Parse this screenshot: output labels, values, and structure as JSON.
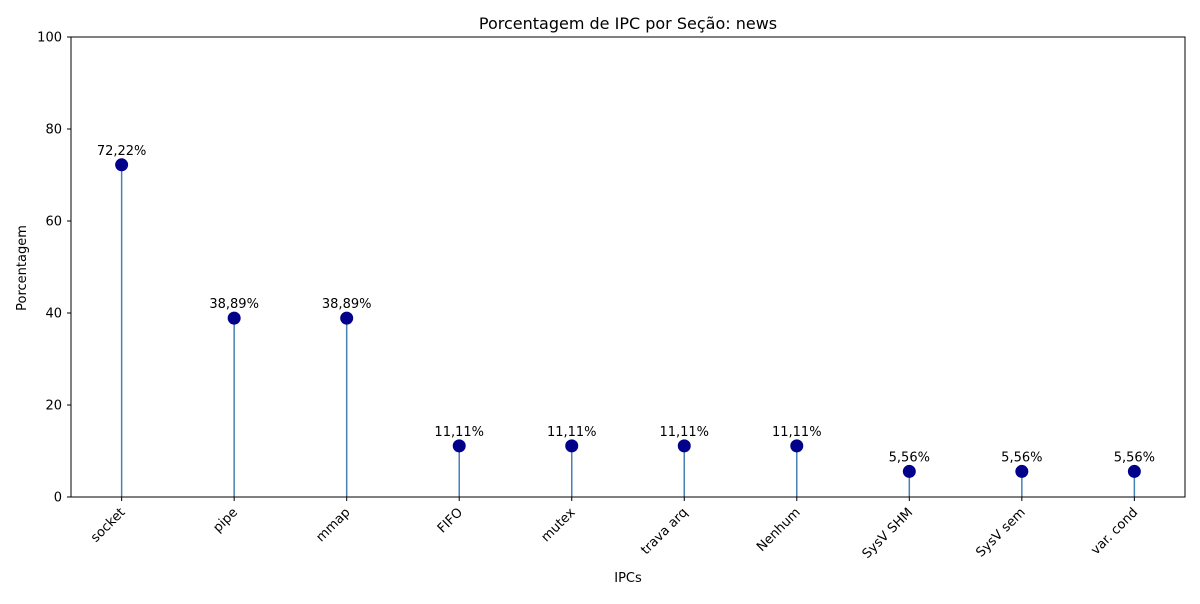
{
  "chart_data": {
    "type": "lollipop",
    "title": "Porcentagem de IPC por Seção: news",
    "xlabel": "IPCs",
    "ylabel": "Porcentagem",
    "ylim": [
      0,
      100
    ],
    "yticks": [
      0,
      20,
      40,
      60,
      80,
      100
    ],
    "grid": false,
    "categories": [
      "socket",
      "pipe",
      "mmap",
      "FIFO",
      "mutex",
      "trava arq",
      "Nenhum",
      "SysV SHM",
      "SysV sem",
      "var. cond"
    ],
    "values": [
      72.22,
      38.89,
      38.89,
      11.11,
      11.11,
      11.11,
      11.11,
      5.56,
      5.56,
      5.56
    ],
    "data_labels": [
      "72,22%",
      "38,89%",
      "38,89%",
      "11,11%",
      "11,11%",
      "11,11%",
      "11,11%",
      "5,56%",
      "5,56%",
      "5,56%"
    ],
    "colors": {
      "marker": "#00008b",
      "stem": "#4682b4",
      "axis": "#000000"
    }
  }
}
